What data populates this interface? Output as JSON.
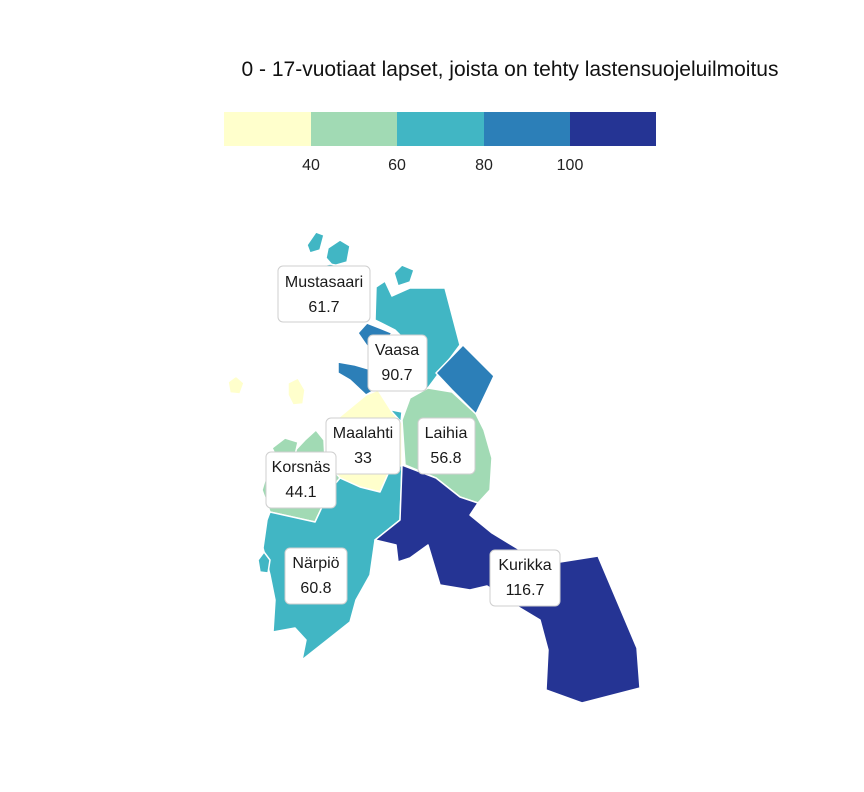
{
  "title": "0 - 17-vuotiaat lapset, joista on tehty lastensuojeluilmoitus",
  "legend": {
    "colors": [
      "#ffffcc",
      "#a1dab4",
      "#41b6c4",
      "#2c7fb8",
      "#253494"
    ],
    "ticks": [
      "40",
      "60",
      "80",
      "100"
    ]
  },
  "regions": [
    {
      "name": "Mustasaari",
      "value": "61.7",
      "color": "#41b6c4"
    },
    {
      "name": "Vaasa",
      "value": "90.7",
      "color": "#2c7fb8"
    },
    {
      "name": "Maalahti",
      "value": "33",
      "color": "#ffffcc"
    },
    {
      "name": "Laihia",
      "value": "56.8",
      "color": "#a1dab4"
    },
    {
      "name": "Korsnäs",
      "value": "44.1",
      "color": "#a1dab4"
    },
    {
      "name": "Närpiö",
      "value": "60.8",
      "color": "#41b6c4"
    },
    {
      "name": "Kurikka",
      "value": "116.7",
      "color": "#253494"
    }
  ]
}
